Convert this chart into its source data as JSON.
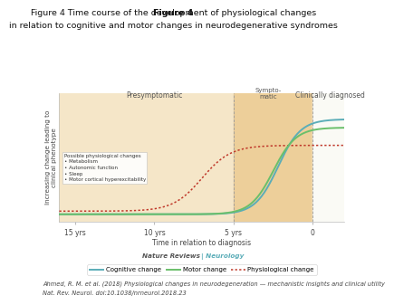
{
  "title_bold": "Figure 4",
  "title_rest_line1": " Time course of the development of physiological changes",
  "title_rest_line2": "in relation to cognitive and motor changes in neurodegenerative syndromes",
  "xlabel": "Time in relation to diagnosis",
  "ylabel": "Increasing change leading to\nclinical phenotype",
  "x_ticks": [
    -15,
    -10,
    -5,
    0
  ],
  "x_tick_labels": [
    "15 yrs",
    "10 yrs",
    "5 yrs",
    "0"
  ],
  "xlim": [
    -16,
    2
  ],
  "ylim": [
    -0.05,
    1.18
  ],
  "cognitive_color": "#5badb8",
  "motor_color": "#6abf6a",
  "physio_color": "#c0392b",
  "presym_bg": "#f5e6c8",
  "sympto_bg": "#edcf9a",
  "clin_bg": "#fafaf5",
  "annotation_text": "Possible physiological changes\n• Metabolism\n• Autonomic function\n• Sleep\n• Motor cortical hyperexcitability",
  "presym_label": "Presymptomatic",
  "sympto_label": "Sympto-\nmatic",
  "clindiag_label": "Clinically diagnosed",
  "legend_cognitive": "Cognitive change",
  "legend_motor": "Motor change",
  "legend_physio": "Physiological change",
  "citation_line1": "Ahmed, R. M. et al. (2018) Physiological changes in neurodegeneration — mechanistic insights and clinical utility",
  "citation_line2": "Nat. Rev. Neurol. doi:10.1038/nrneurol.2018.23"
}
